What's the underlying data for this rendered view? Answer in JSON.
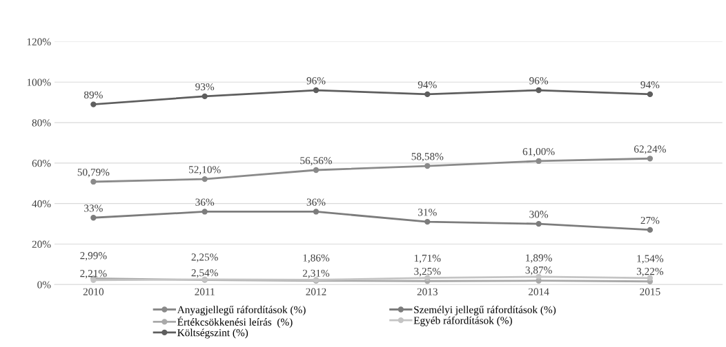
{
  "chart_data": {
    "type": "line",
    "categories": [
      "2010",
      "2011",
      "2012",
      "2013",
      "2014",
      "2015"
    ],
    "series": [
      {
        "name": "Anyagjellegű ráfordítások (%)",
        "color": "#8a8a8a",
        "values": [
          50.79,
          52.1,
          56.56,
          58.58,
          61.0,
          62.24
        ],
        "value_labels": [
          "50,79%",
          "52,10%",
          "56,56%",
          "58,58%",
          "61,00%",
          "62,24%"
        ]
      },
      {
        "name": "Személyi jellegű ráfordítások (%)",
        "color": "#7c7c7c",
        "values": [
          33,
          36,
          36,
          31,
          30,
          27
        ],
        "value_labels": [
          "33%",
          "36%",
          "36%",
          "31%",
          "30%",
          "27%"
        ]
      },
      {
        "name": "Értékcsökkenési leírás  (%)",
        "color": "#a9a9a9",
        "values": [
          2.99,
          2.25,
          1.86,
          1.71,
          1.89,
          1.54
        ],
        "value_labels": [
          "2,99%",
          "2,25%",
          "1,86%",
          "1,71%",
          "1,89%",
          "1,54%"
        ]
      },
      {
        "name": "Egyéb ráfordítások (%)",
        "color": "#c4c4c4",
        "values": [
          2.21,
          2.54,
          2.31,
          3.25,
          3.87,
          3.22
        ],
        "value_labels": [
          "2,21%",
          "2,54%",
          "2,31%",
          "3,25%",
          "3,87%",
          "3,22%"
        ]
      },
      {
        "name": "Költségszint (%)",
        "color": "#5e5e5e",
        "values": [
          89,
          93,
          96,
          94,
          96,
          94
        ],
        "value_labels": [
          "89%",
          "93%",
          "96%",
          "94%",
          "96%",
          "94%"
        ]
      }
    ],
    "ylim": [
      0,
      120
    ],
    "yticks": [
      {
        "value": 0,
        "label": "0%"
      },
      {
        "value": 20,
        "label": "20%"
      },
      {
        "value": 40,
        "label": "40%"
      },
      {
        "value": 60,
        "label": "60%"
      },
      {
        "value": 80,
        "label": "80%"
      },
      {
        "value": 100,
        "label": "100%"
      },
      {
        "value": 120,
        "label": "120%"
      }
    ],
    "grid": "y",
    "legend": "bottom",
    "marker": "circle",
    "line_style": "solid"
  }
}
